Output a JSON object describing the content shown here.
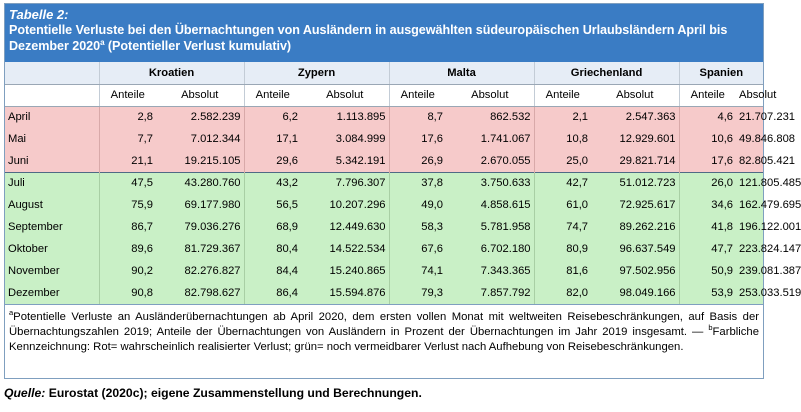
{
  "title": {
    "label": "Tabelle 2:",
    "text_before_sup": "Potentielle Verluste bei den Übernachtungen von Ausländern in ausgewählten südeuropäischen Urlaubsländern April bis Dezember 2020",
    "sup": "a",
    "text_after_sup": " (Potentieller Verlust kumulativ)"
  },
  "countries": [
    "Kroatien",
    "Zypern",
    "Malta",
    "Griechenland",
    "Spanien"
  ],
  "subheaders": {
    "share": "Anteile",
    "absolute": "Absolut"
  },
  "rows": [
    {
      "month": "April",
      "status": "red",
      "values": [
        [
          "2,8",
          "2.582.239"
        ],
        [
          "6,2",
          "1.113.895"
        ],
        [
          "8,7",
          "862.532"
        ],
        [
          "2,1",
          "2.547.363"
        ],
        [
          "4,6",
          "21.707.231"
        ]
      ]
    },
    {
      "month": "Mai",
      "status": "red",
      "values": [
        [
          "7,7",
          "7.012.344"
        ],
        [
          "17,1",
          "3.084.999"
        ],
        [
          "17,6",
          "1.741.067"
        ],
        [
          "10,8",
          "12.929.601"
        ],
        [
          "10,6",
          "49.846.808"
        ]
      ]
    },
    {
      "month": "Juni",
      "status": "red",
      "values": [
        [
          "21,1",
          "19.215.105"
        ],
        [
          "29,6",
          "5.342.191"
        ],
        [
          "26,9",
          "2.670.055"
        ],
        [
          "25,0",
          "29.821.714"
        ],
        [
          "17,6",
          "82.805.421"
        ]
      ]
    },
    {
      "month": "Juli",
      "status": "green",
      "values": [
        [
          "47,5",
          "43.280.760"
        ],
        [
          "43,2",
          "7.796.307"
        ],
        [
          "37,8",
          "3.750.633"
        ],
        [
          "42,7",
          "51.012.723"
        ],
        [
          "26,0",
          "121.805.485"
        ]
      ]
    },
    {
      "month": "August",
      "status": "green",
      "values": [
        [
          "75,9",
          "69.177.980"
        ],
        [
          "56,5",
          "10.207.296"
        ],
        [
          "49,0",
          "4.858.615"
        ],
        [
          "61,0",
          "72.925.617"
        ],
        [
          "34,6",
          "162.479.695"
        ]
      ]
    },
    {
      "month": "September",
      "status": "green",
      "values": [
        [
          "86,7",
          "79.036.276"
        ],
        [
          "68,9",
          "12.449.630"
        ],
        [
          "58,3",
          "5.781.958"
        ],
        [
          "74,7",
          "89.262.216"
        ],
        [
          "41,8",
          "196.122.001"
        ]
      ]
    },
    {
      "month": "Oktober",
      "status": "green",
      "values": [
        [
          "89,6",
          "81.729.367"
        ],
        [
          "80,4",
          "14.522.534"
        ],
        [
          "67,6",
          "6.702.180"
        ],
        [
          "80,9",
          "96.637.549"
        ],
        [
          "47,7",
          "223.824.147"
        ]
      ]
    },
    {
      "month": "November",
      "status": "green",
      "values": [
        [
          "90,2",
          "82.276.827"
        ],
        [
          "84,4",
          "15.240.865"
        ],
        [
          "74,1",
          "7.343.365"
        ],
        [
          "81,6",
          "97.502.956"
        ],
        [
          "50,9",
          "239.081.387"
        ]
      ]
    },
    {
      "month": "Dezember",
      "status": "green",
      "values": [
        [
          "90,8",
          "82.798.627"
        ],
        [
          "86,4",
          "15.594.876"
        ],
        [
          "79,3",
          "7.857.792"
        ],
        [
          "82,0",
          "98.049.166"
        ],
        [
          "53,9",
          "253.033.519"
        ]
      ]
    }
  ],
  "footnote": {
    "sup_a": "a",
    "text_a": "Potentielle Verluste an Ausländerübernachtungen ab April 2020, dem ersten vollen Monat mit weltweiten Reisebeschränkungen, auf Basis der Übernachtungszahlen 2019; Anteile der Übernachtungen von Ausländern in Prozent der Übernachtungen im Jahr 2019 insgesamt. — ",
    "sup_b": "b",
    "text_b": "Farbliche Kennzeichnung: Rot= wahrscheinlich realisierter Verlust; grün= noch vermeidbarer Verlust nach Aufhebung von Reisebeschränkungen."
  },
  "source": {
    "label": "Quelle:",
    "text": " Eurostat (2020c); eigene Zusammenstellung und Berechnungen."
  },
  "colors": {
    "title_bg": "#3a7cc4",
    "header_bg": "#e6edf6",
    "red_row": "#f6caca",
    "green_row": "#c9f0c6"
  }
}
